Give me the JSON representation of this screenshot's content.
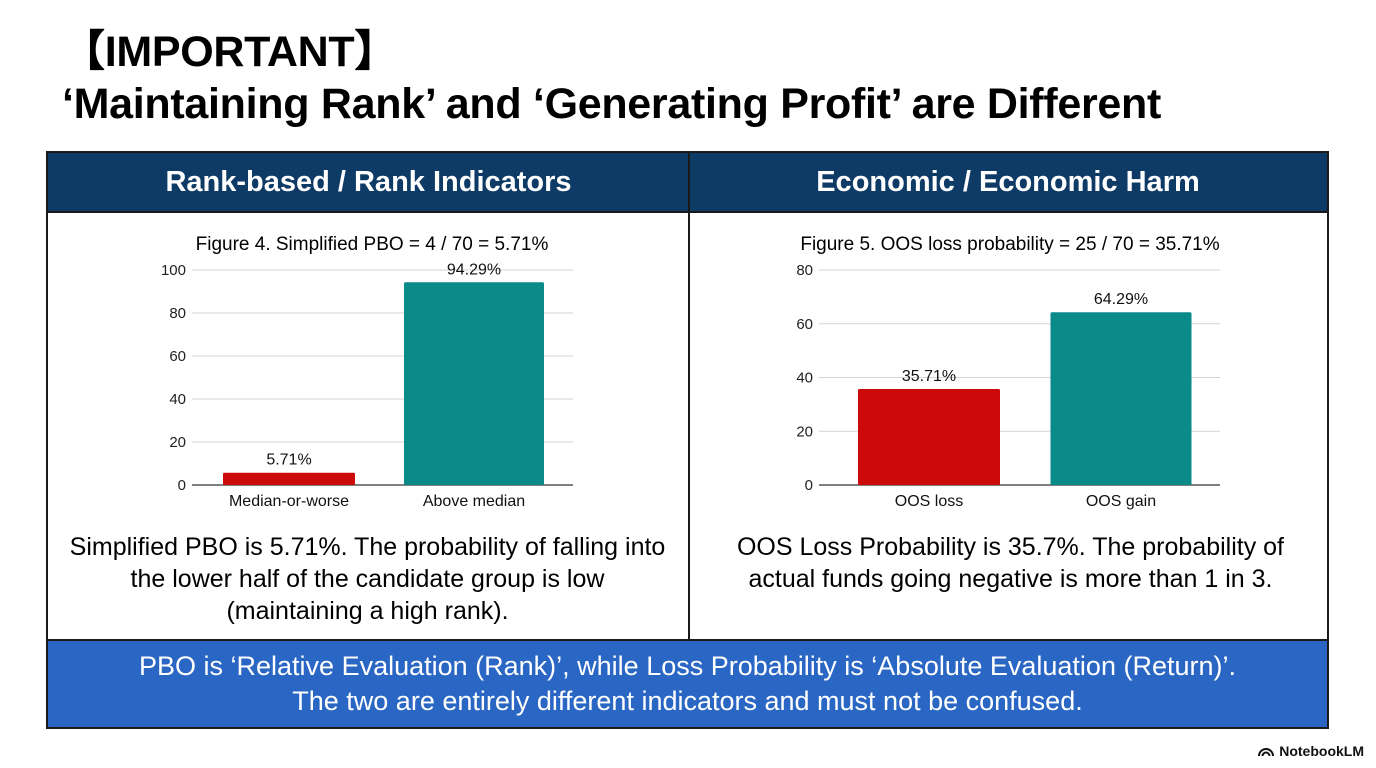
{
  "title": {
    "line1": "【IMPORTANT】",
    "line2": "‘Maintaining Rank’ and ‘Generating Profit’ are Different"
  },
  "left": {
    "header": "Rank-based / Rank Indicators",
    "description": "Simplified PBO is 5.71%. The probability of falling into the lower half of the candidate group is low (maintaining a high rank)."
  },
  "right": {
    "header": "Economic / Economic Harm",
    "description": "OOS Loss Probability is 35.7%. The probability of actual funds going negative is more than 1 in 3."
  },
  "footer": {
    "line1": "PBO is ‘Relative Evaluation (Rank)’, while Loss Probability is ‘Absolute Evaluation (Return)’.",
    "line2": "The two are entirely different indicators and must not be confused."
  },
  "brand": {
    "label": "NotebookLM",
    "icon": "notebooklm-logo-icon"
  },
  "colors": {
    "header_bg": "#0e3a66",
    "footer_bg": "#2a66c3",
    "red": "#cc0a0a",
    "teal": "#0a8a88"
  },
  "chart_data": [
    {
      "type": "bar",
      "title": "Figure 4. Simplified PBO = 4 / 70 = 5.71%",
      "categories": [
        "Median-or-worse",
        "Above median"
      ],
      "values": [
        5.71,
        94.29
      ],
      "data_labels": [
        "5.71%",
        "94.29%"
      ],
      "bar_colors": [
        "#cc0a0a",
        "#0a8a88"
      ],
      "ylim": [
        0,
        100
      ],
      "yticks": [
        0,
        20,
        40,
        60,
        80,
        100
      ],
      "grid": true,
      "xlabel": "",
      "ylabel": ""
    },
    {
      "type": "bar",
      "title": "Figure 5. OOS loss probability = 25 / 70 = 35.71%",
      "categories": [
        "OOS loss",
        "OOS gain"
      ],
      "values": [
        35.71,
        64.29
      ],
      "data_labels": [
        "35.71%",
        "64.29%"
      ],
      "bar_colors": [
        "#cc0a0a",
        "#0a8a88"
      ],
      "ylim": [
        0,
        80
      ],
      "yticks": [
        0,
        20,
        40,
        60,
        80
      ],
      "grid": true,
      "xlabel": "",
      "ylabel": ""
    }
  ]
}
